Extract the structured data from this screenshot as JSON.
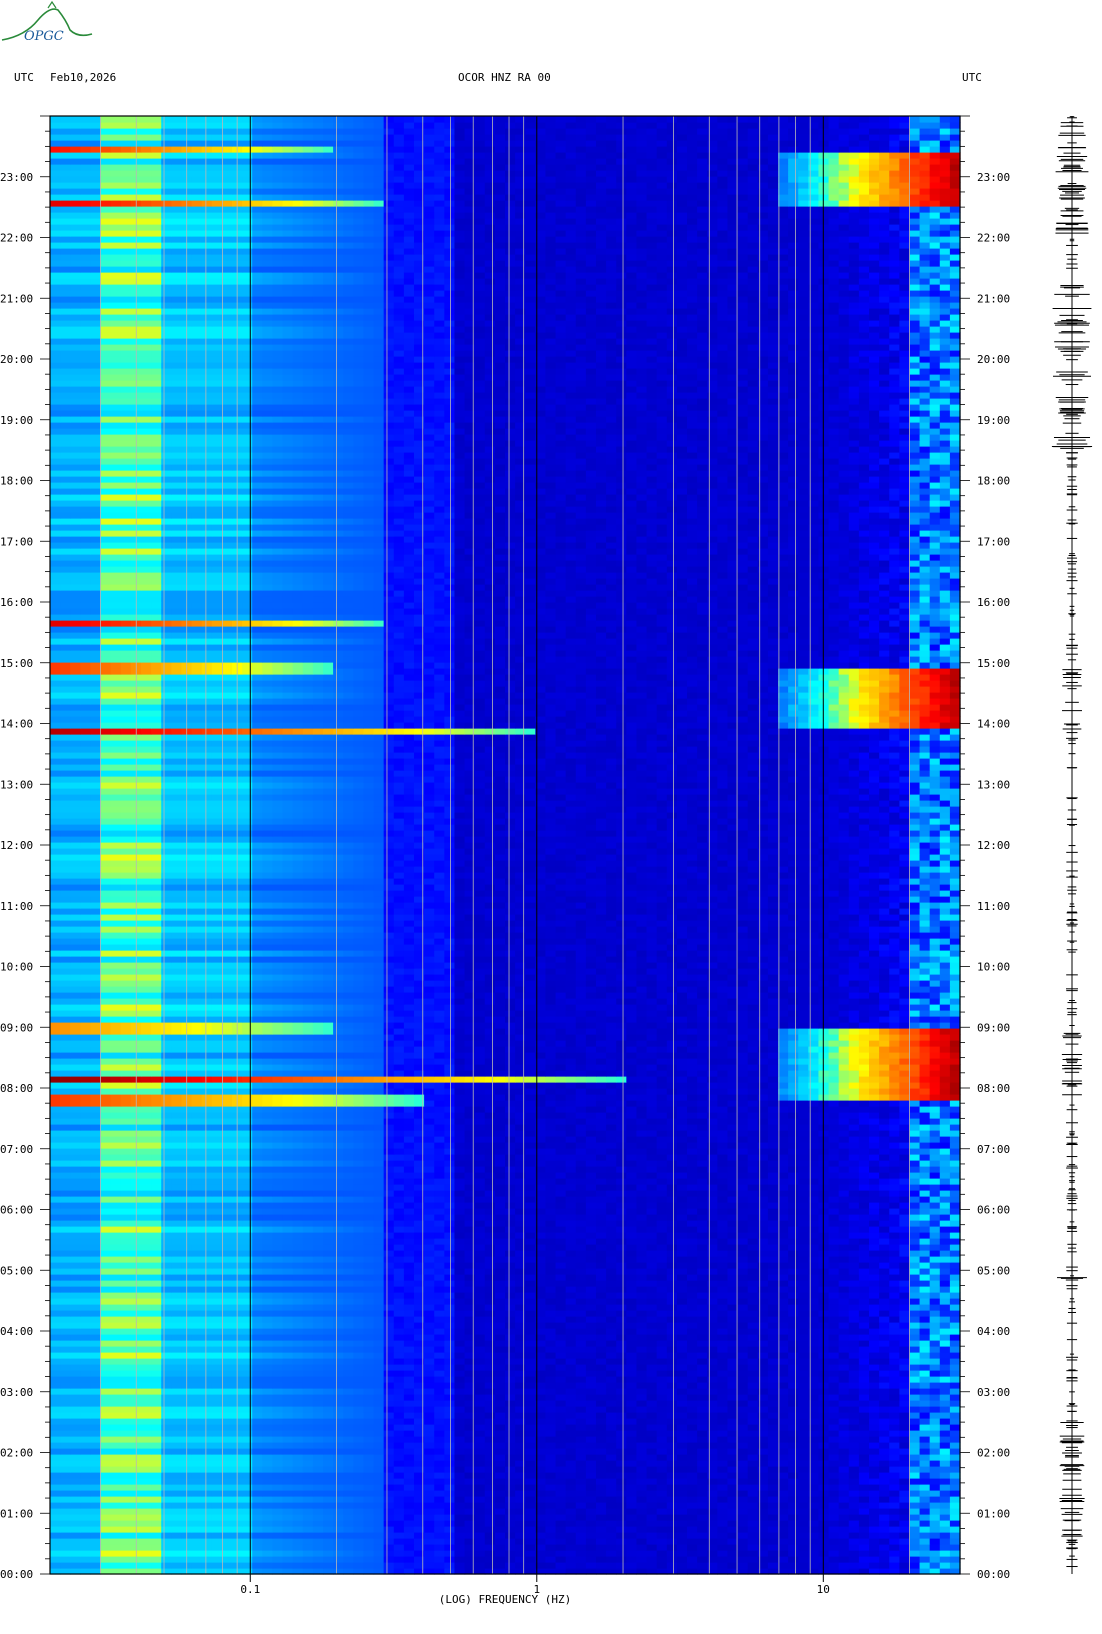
{
  "header": {
    "left_tz": "UTC",
    "date": "Feb10,2026",
    "station": "OCOR HNZ RA 00",
    "right_tz": "UTC"
  },
  "logo": {
    "text": "OPGC",
    "icon": "opgc-mountain-logo"
  },
  "chart_data": {
    "type": "heatmap",
    "title": "OCOR HNZ RA 00",
    "xlabel": "(LOG) FREQUENCY (HZ)",
    "ylabel": "",
    "x_scale": "log",
    "xlim": [
      0.02,
      30
    ],
    "ylim_hours": [
      0,
      24
    ],
    "x_tick_labels": [
      {
        "value": 0.1,
        "label": "0.1"
      },
      {
        "value": 1,
        "label": "1"
      },
      {
        "value": 10,
        "label": "10"
      }
    ],
    "y_tick_labels": [
      "00:00",
      "01:00",
      "02:00",
      "03:00",
      "04:00",
      "05:00",
      "06:00",
      "07:00",
      "08:00",
      "09:00",
      "10:00",
      "11:00",
      "12:00",
      "13:00",
      "14:00",
      "15:00",
      "16:00",
      "17:00",
      "18:00",
      "19:00",
      "20:00",
      "21:00",
      "22:00",
      "23:00"
    ],
    "colormap": [
      "#00008b",
      "#0000ff",
      "#0080ff",
      "#00ffff",
      "#ffff00",
      "#ff8000",
      "#ff0000",
      "#8b0000"
    ],
    "high_energy_windows": [
      {
        "start_hour": 7.8,
        "end_hour": 9.0,
        "fmin_hz": 7,
        "level": 0.95
      },
      {
        "start_hour": 13.9,
        "end_hour": 14.9,
        "fmin_hz": 7,
        "level": 0.95
      },
      {
        "start_hour": 22.5,
        "end_hour": 23.4,
        "fmin_hz": 7,
        "level": 0.95
      }
    ],
    "broadband_lines": [
      {
        "hour": 8.15,
        "fmax_hz": 2.0,
        "level": 1.0
      },
      {
        "hour": 7.8,
        "fmax_hz": 0.4,
        "level": 0.8
      },
      {
        "hour": 9.0,
        "fmax_hz": 0.2,
        "level": 0.7
      },
      {
        "hour": 13.9,
        "fmax_hz": 1.0,
        "level": 0.95
      },
      {
        "hour": 14.9,
        "fmax_hz": 0.2,
        "level": 0.8
      },
      {
        "hour": 15.65,
        "fmax_hz": 0.3,
        "level": 0.9
      },
      {
        "hour": 22.55,
        "fmax_hz": 0.3,
        "level": 0.9
      },
      {
        "hour": 23.45,
        "fmax_hz": 0.2,
        "level": 0.85
      }
    ]
  },
  "trace": {
    "label": "seismogram-trace"
  }
}
